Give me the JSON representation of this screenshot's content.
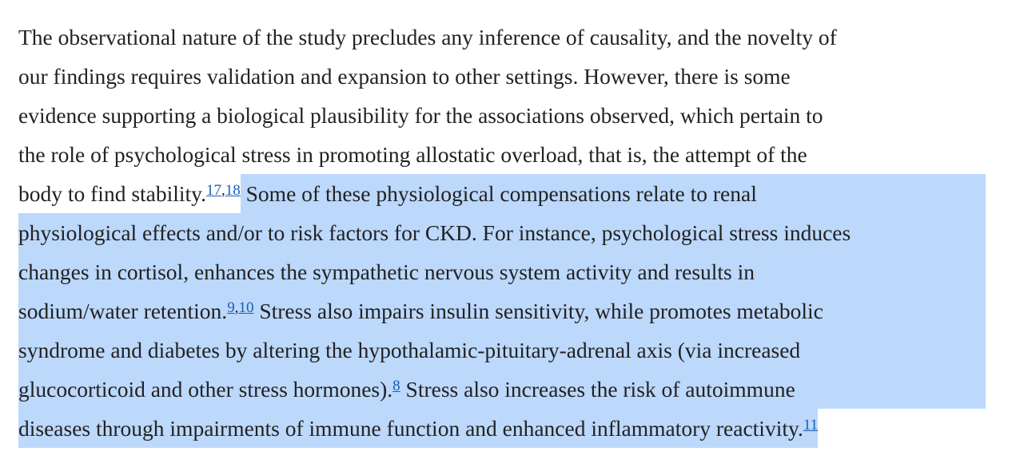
{
  "paragraph": {
    "lines": [
      [
        "The observational nature of the study precludes any inference of causality, and the novelty of"
      ],
      [
        "our findings requires validation and expansion to other settings. However, there is some"
      ],
      [
        "evidence supporting a biological plausibility for the associations observed, which pertain to"
      ],
      [
        "the role of psychological stress in promoting allostatic overload, that is, the attempt of the"
      ],
      [
        "body to find stability.",
        "17",
        ",",
        "18",
        " Some of these physiological compensations relate to renal"
      ],
      [
        "physiological effects and/or to risk factors for CKD. For instance, psychological stress induces"
      ],
      [
        "changes in cortisol, enhances the sympathetic nervous system activity and results in"
      ],
      [
        "sodium/water retention.",
        "9",
        ",",
        "10",
        " Stress also impairs insulin sensitivity, while promotes metabolic"
      ],
      [
        "syndrome and diabetes by altering the hypothalamic-pituitary-adrenal axis (via increased"
      ],
      [
        "glucocorticoid and other stress hormones).",
        "8",
        " Stress also increases the risk of autoimmune"
      ],
      [
        "diseases through impairments of immune function and enhanced inflammatory reactivity.",
        "11"
      ]
    ]
  }
}
